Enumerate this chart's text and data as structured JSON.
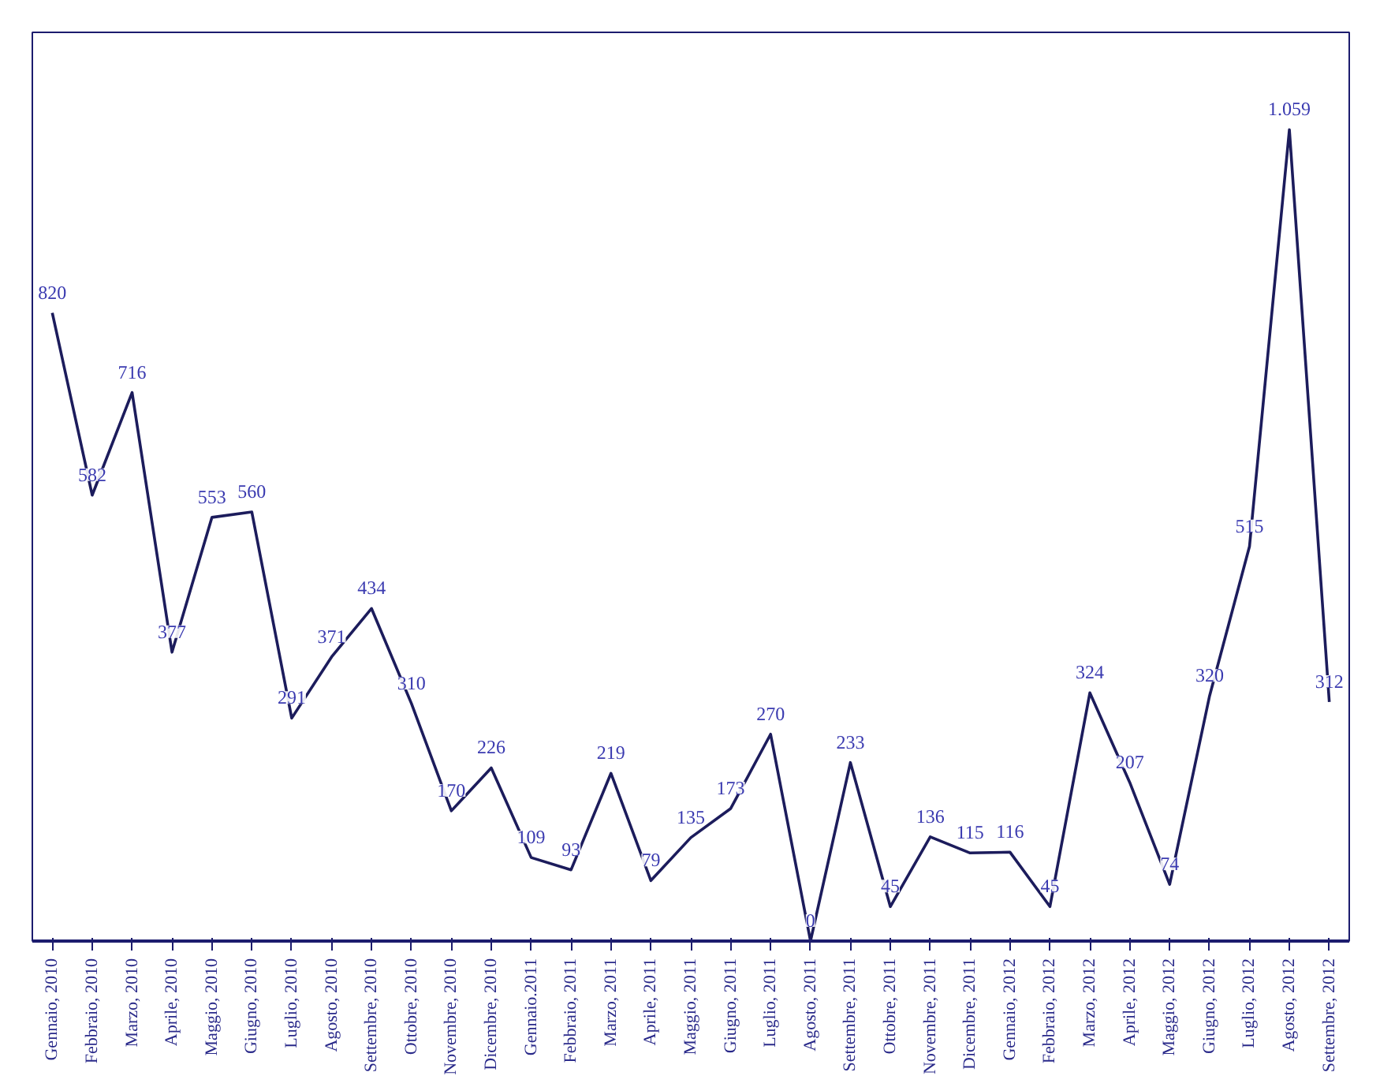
{
  "chart_data": {
    "type": "line",
    "tick_labels": "x",
    "line_style": "solid",
    "categories": [
      "Gennaio, 2010",
      "Febbraio, 2010",
      "Marzo, 2010",
      "Aprile, 2010",
      "Maggio, 2010",
      "Giugno, 2010",
      "Luglio, 2010",
      "Agosto, 2010",
      "Settembre, 2010",
      "Ottobre, 2010",
      "Novembre, 2010",
      "Dicembre, 2010",
      "Gennaio.2011",
      "Febbraio, 2011",
      "Marzo, 2011",
      "Aprile, 2011",
      "Maggio, 2011",
      "Giugno, 2011",
      "Luglio, 2011",
      "Agosto, 2011",
      "Settembre, 2011",
      "Ottobre, 2011",
      "Novembre, 2011",
      "Dicembre, 2011",
      "Gennaio, 2012",
      "Febbraio, 2012",
      "Marzo, 2012",
      "Aprile, 2012",
      "Maggio, 2012",
      "Giugno, 2012",
      "Luglio, 2012",
      "Agosto, 2012",
      "Settembre, 2012"
    ],
    "series": [
      {
        "color": "#1c1c5c",
        "values": [
          820,
          582,
          716,
          377,
          553,
          560,
          291,
          371,
          434,
          310,
          170,
          226,
          109,
          93,
          219,
          79,
          135,
          173,
          270,
          0,
          233,
          45,
          136,
          115,
          116,
          45,
          324,
          207,
          74,
          320,
          515,
          1059,
          312
        ],
        "value_labels": [
          "820",
          "582",
          "716",
          "377",
          "553",
          "560",
          "291",
          "371",
          "434",
          "310",
          "170",
          "226",
          "109",
          "93",
          "219",
          "79",
          "135",
          "173",
          "270",
          "0",
          "233",
          "45",
          "136",
          "115",
          "116",
          "45",
          "324",
          "207",
          "74",
          "320",
          "515",
          "1.059",
          "312"
        ]
      }
    ]
  }
}
